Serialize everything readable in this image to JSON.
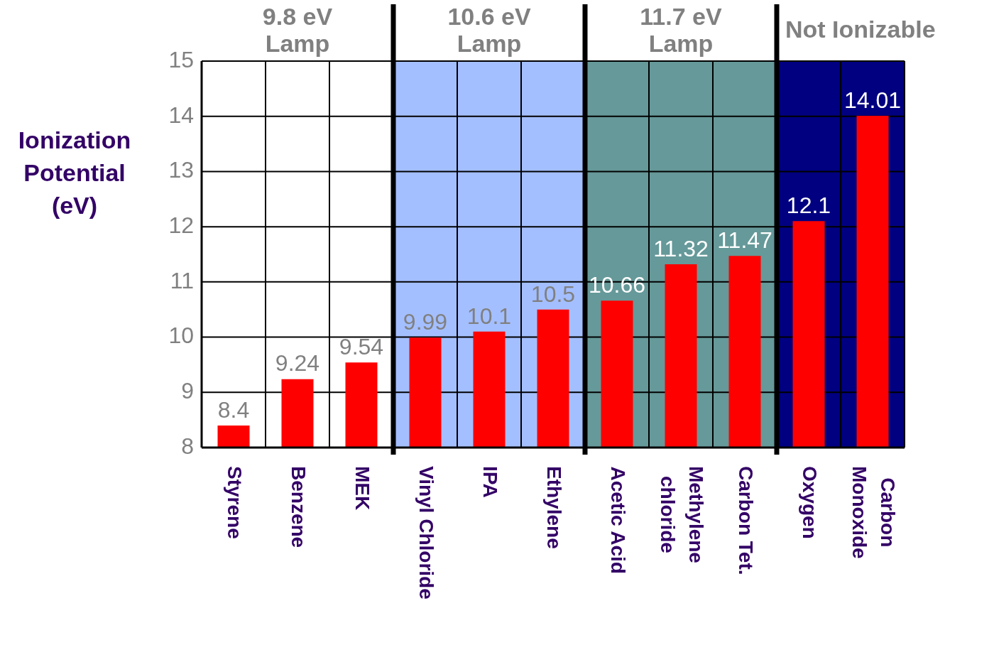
{
  "chart_data": {
    "type": "bar",
    "ylabel": "Ionization Potential (eV)",
    "categories": [
      "Styrene",
      "Benzene",
      "MEK",
      "Vinyl Chloride",
      "IPA",
      "Ethylene",
      "Acetic Acid",
      "Methylene chloride",
      "Carbon Tet.",
      "Oxygen",
      "Carbon Monoxide"
    ],
    "values": [
      8.4,
      9.24,
      9.54,
      9.99,
      10.1,
      10.5,
      10.66,
      11.32,
      11.47,
      12.1,
      14.01
    ],
    "color": "#ff0000",
    "ylim": [
      8,
      15
    ],
    "yticks": [
      8,
      9,
      10,
      11,
      12,
      13,
      14,
      15
    ],
    "grid": true,
    "legend": false,
    "data_labels": true,
    "annotations": [
      "9.8 eV Lamp"
    ],
    "bands": [
      {
        "axis": "x",
        "from": "Vinyl Chloride",
        "to": "Ethylene",
        "label": "10.6 eV Lamp",
        "color": "#a4bfff"
      },
      {
        "axis": "x",
        "from": "Acetic Acid",
        "to": "Carbon Tet.",
        "label": "11.7 eV Lamp",
        "color": "#669999"
      },
      {
        "axis": "x",
        "from": "Oxygen",
        "to": "Carbon Monoxide",
        "label": "Not Ionizable",
        "color": "#000080"
      }
    ]
  }
}
